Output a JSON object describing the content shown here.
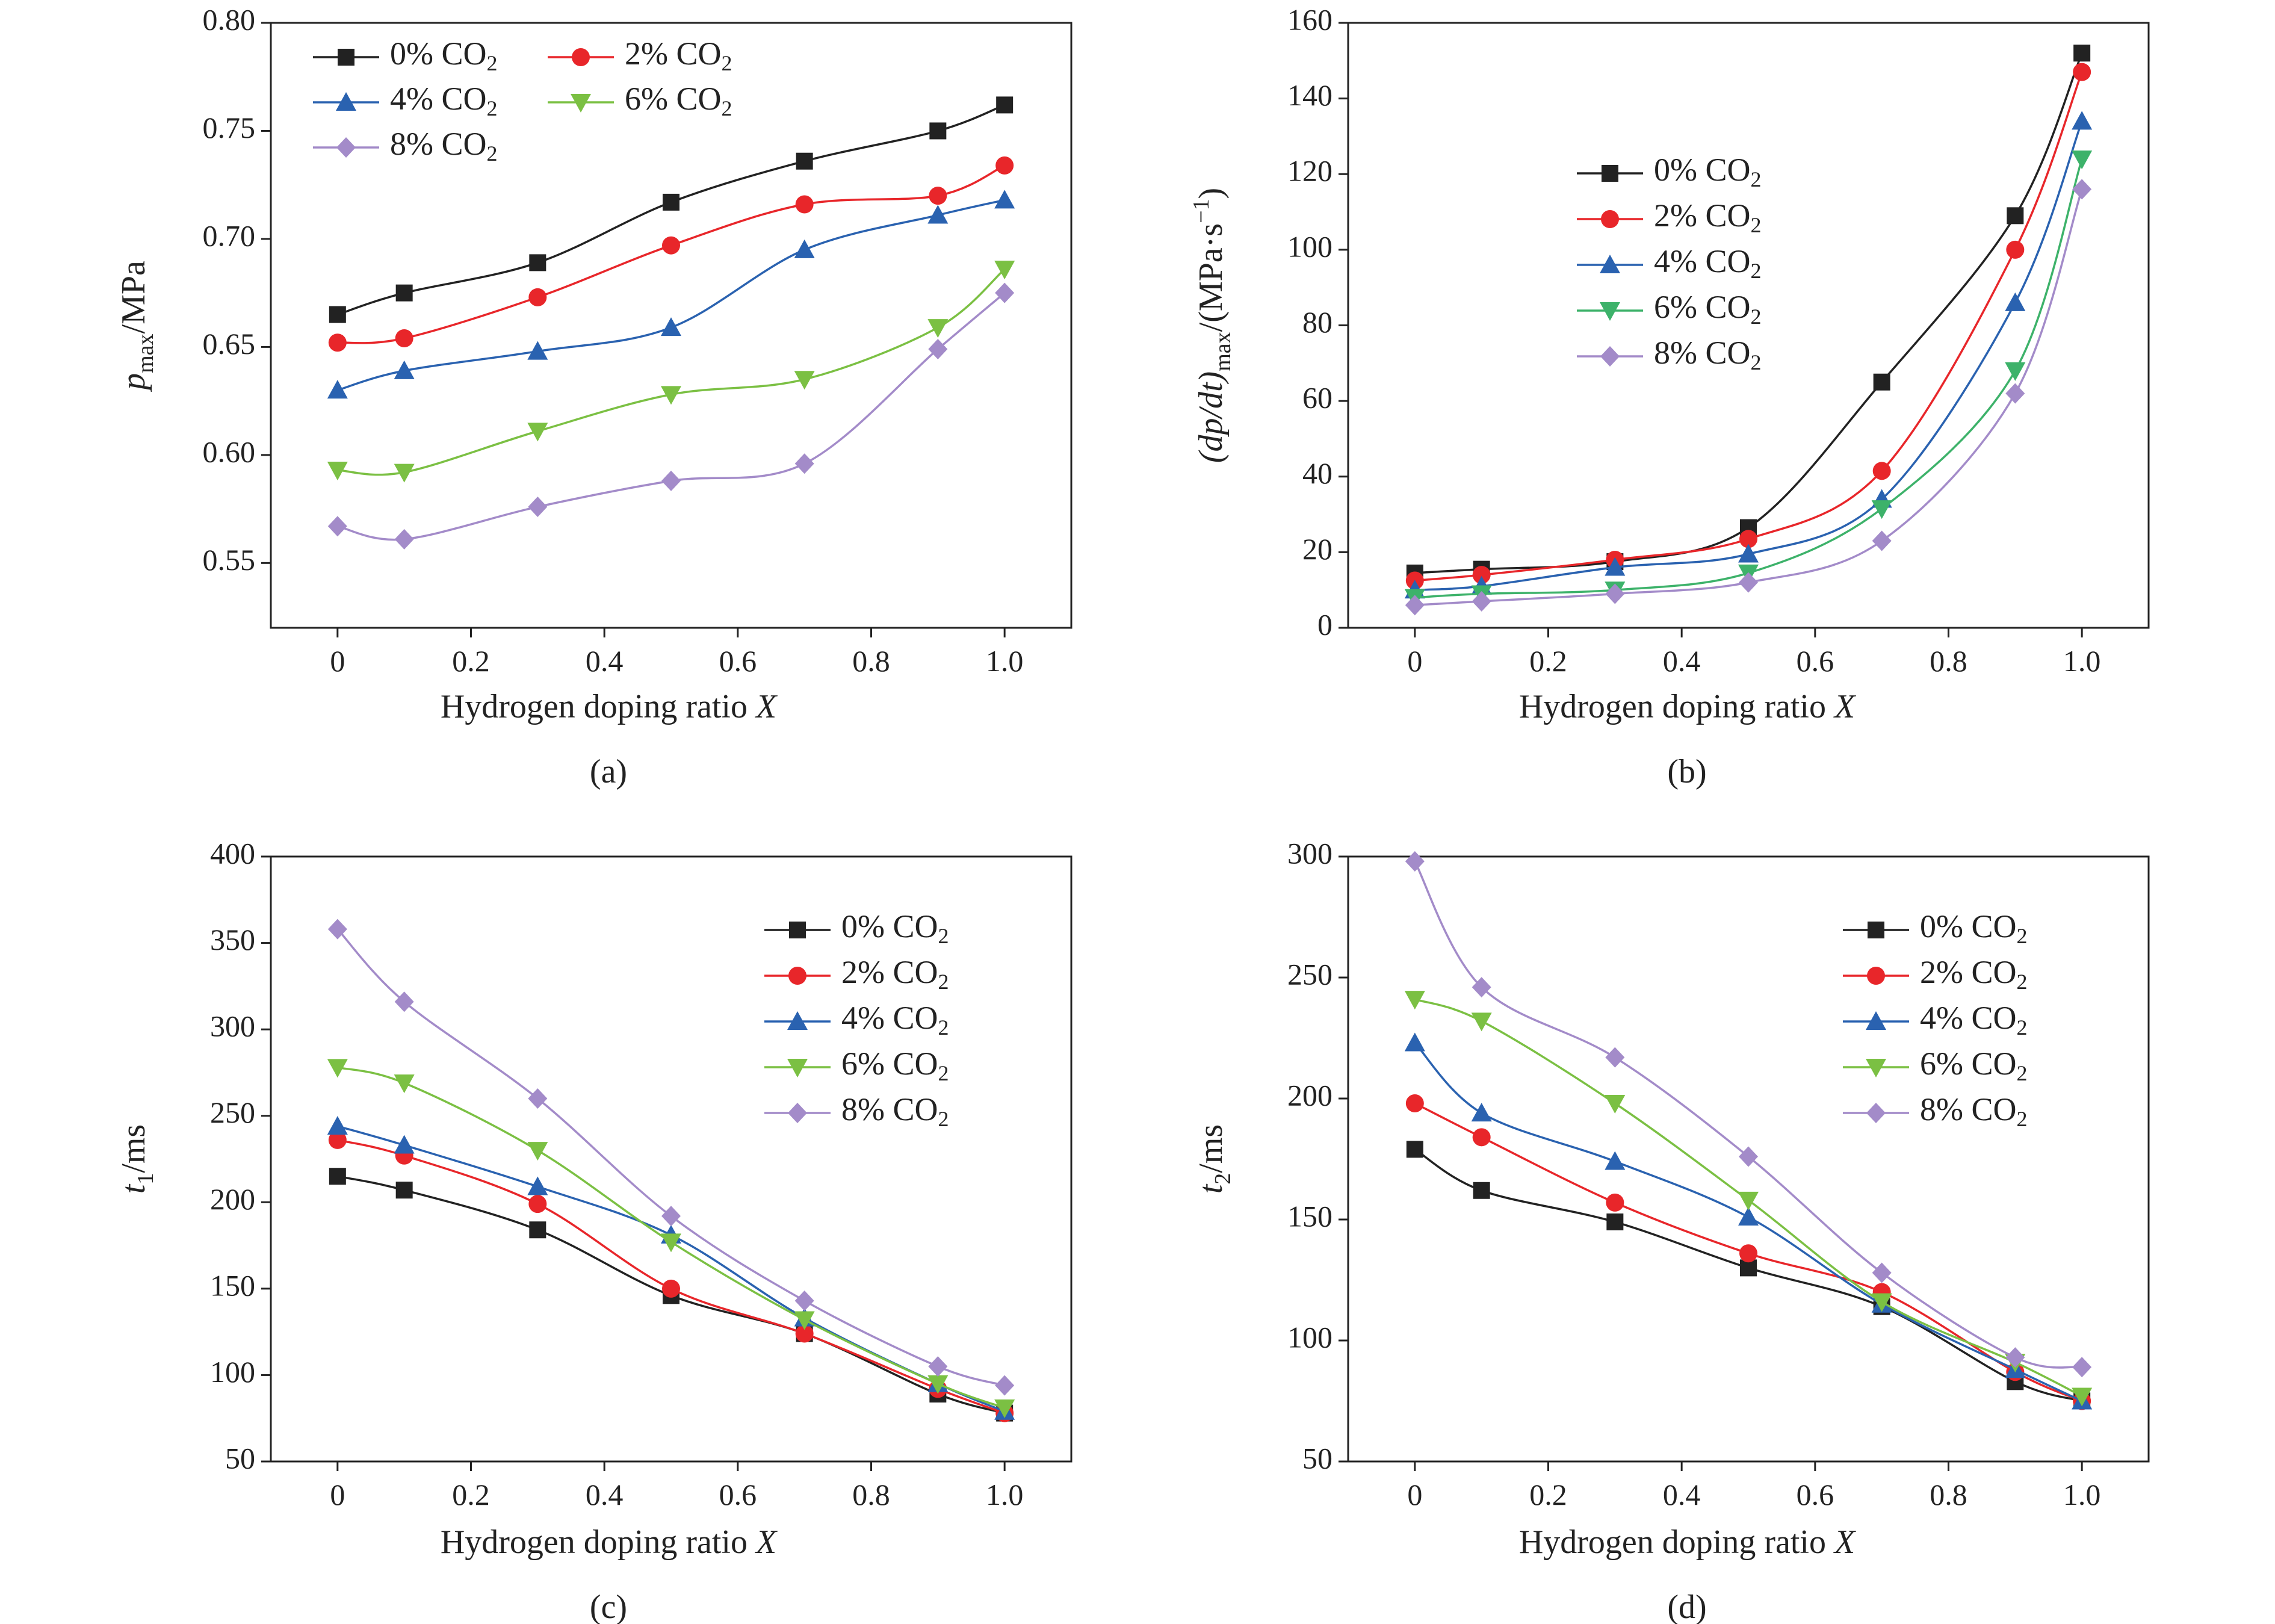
{
  "chart_data": [
    {
      "type": "line",
      "panel": "(a)",
      "xlabel": "Hydrogen doping ratio X",
      "ylabel_main": "p",
      "ylabel_sub": "max",
      "ylabel_rest": "/MPa",
      "x": [
        0,
        0.1,
        0.3,
        0.5,
        0.7,
        0.9,
        1.0
      ],
      "xlim": [
        -0.1,
        1.1
      ],
      "ylim": [
        0.52,
        0.8
      ],
      "xticks": [
        0,
        0.2,
        0.4,
        0.6,
        0.8,
        1.0
      ],
      "xtick_labels": [
        "0",
        "0.2",
        "0.4",
        "0.6",
        "0.8",
        "1.0"
      ],
      "yticks": [
        0.55,
        0.6,
        0.65,
        0.7,
        0.75,
        0.8
      ],
      "ytick_labels": [
        "0.55",
        "0.60",
        "0.65",
        "0.70",
        "0.75",
        "0.80"
      ],
      "legend_layout": "two-column",
      "series": [
        {
          "name": "0% CO",
          "sub": "2",
          "values": [
            0.665,
            0.675,
            0.689,
            0.717,
            0.736,
            0.75,
            0.762
          ],
          "color": "#222222",
          "marker": "square"
        },
        {
          "name": "2% CO",
          "sub": "2",
          "values": [
            0.652,
            0.654,
            0.673,
            0.697,
            0.716,
            0.72,
            0.734
          ],
          "color": "#e8262a",
          "marker": "circle"
        },
        {
          "name": "4% CO",
          "sub": "2",
          "values": [
            0.63,
            0.639,
            0.648,
            0.659,
            0.695,
            0.711,
            0.718
          ],
          "color": "#2a62b0",
          "marker": "triangle-up"
        },
        {
          "name": "6% CO",
          "sub": "2",
          "values": [
            0.593,
            0.592,
            0.611,
            0.628,
            0.635,
            0.659,
            0.686
          ],
          "color": "#7bc043",
          "marker": "triangle-down"
        },
        {
          "name": "8% CO",
          "sub": "2",
          "values": [
            0.567,
            0.561,
            0.576,
            0.588,
            0.596,
            0.649,
            0.675
          ],
          "color": "#a38bc9",
          "marker": "diamond"
        }
      ]
    },
    {
      "type": "line",
      "panel": "(b)",
      "xlabel": "Hydrogen doping ratio X",
      "ylabel_main": "(dp/dt)",
      "ylabel_sub": "max",
      "ylabel_rest": "/(MPa·s",
      "ylabel_sup": "−1",
      "ylabel_end": ")",
      "x": [
        0,
        0.1,
        0.3,
        0.5,
        0.7,
        0.9,
        1.0
      ],
      "xlim": [
        -0.1,
        1.1
      ],
      "ylim": [
        0,
        160
      ],
      "xticks": [
        0,
        0.2,
        0.4,
        0.6,
        0.8,
        1.0
      ],
      "xtick_labels": [
        "0",
        "0.2",
        "0.4",
        "0.6",
        "0.8",
        "1.0"
      ],
      "yticks": [
        0,
        20,
        40,
        60,
        80,
        100,
        120,
        140,
        160
      ],
      "ytick_labels": [
        "0",
        "20",
        "40",
        "60",
        "80",
        "100",
        "120",
        "140",
        "160"
      ],
      "legend_layout": "one-column",
      "series": [
        {
          "name": "0% CO",
          "sub": "2",
          "values": [
            14.5,
            15.5,
            17.5,
            26.5,
            65,
            109,
            152
          ],
          "color": "#222222",
          "marker": "square"
        },
        {
          "name": "2% CO",
          "sub": "2",
          "values": [
            12.5,
            14,
            18,
            23.5,
            41.5,
            100,
            147
          ],
          "color": "#e8262a",
          "marker": "circle"
        },
        {
          "name": "4% CO",
          "sub": "2",
          "values": [
            10,
            11,
            16,
            19.5,
            34,
            86,
            134
          ],
          "color": "#2a62b0",
          "marker": "triangle-up"
        },
        {
          "name": "6% CO",
          "sub": "2",
          "values": [
            8,
            9,
            10,
            14.5,
            31.5,
            68,
            124
          ],
          "color": "#3db26a",
          "marker": "triangle-down"
        },
        {
          "name": "8% CO",
          "sub": "2",
          "values": [
            6,
            7,
            9,
            12,
            23,
            62,
            116
          ],
          "color": "#a38bc9",
          "marker": "diamond"
        }
      ]
    },
    {
      "type": "line",
      "panel": "(c)",
      "xlabel": "Hydrogen doping ratio X",
      "ylabel_main": "t",
      "ylabel_sub": "1",
      "ylabel_rest": "/ms",
      "x": [
        0,
        0.1,
        0.3,
        0.5,
        0.7,
        0.9,
        1.0
      ],
      "xlim": [
        -0.1,
        1.1
      ],
      "ylim": [
        50,
        400
      ],
      "xticks": [
        0,
        0.2,
        0.4,
        0.6,
        0.8,
        1.0
      ],
      "xtick_labels": [
        "0",
        "0.2",
        "0.4",
        "0.6",
        "0.8",
        "1.0"
      ],
      "yticks": [
        50,
        100,
        150,
        200,
        250,
        300,
        350,
        400
      ],
      "ytick_labels": [
        "50",
        "100",
        "150",
        "200",
        "250",
        "300",
        "350",
        "400"
      ],
      "legend_layout": "one-column",
      "series": [
        {
          "name": "0% CO",
          "sub": "2",
          "values": [
            215,
            207,
            184,
            146,
            124,
            89,
            78
          ],
          "color": "#222222",
          "marker": "square"
        },
        {
          "name": "2% CO",
          "sub": "2",
          "values": [
            236,
            227,
            199,
            150,
            124,
            92,
            78
          ],
          "color": "#e8262a",
          "marker": "circle"
        },
        {
          "name": "4% CO",
          "sub": "2",
          "values": [
            244,
            233,
            209,
            181,
            133,
            95,
            79
          ],
          "color": "#2a62b0",
          "marker": "triangle-up"
        },
        {
          "name": "6% CO",
          "sub": "2",
          "values": [
            278,
            269,
            230,
            177,
            132,
            95,
            81
          ],
          "color": "#7bc043",
          "marker": "triangle-down"
        },
        {
          "name": "8% CO",
          "sub": "2",
          "values": [
            358,
            316,
            260,
            192,
            143,
            105,
            94
          ],
          "color": "#a38bc9",
          "marker": "diamond"
        }
      ]
    },
    {
      "type": "line",
      "panel": "(d)",
      "xlabel": "Hydrogen doping ratio X",
      "ylabel_main": "t",
      "ylabel_sub": "2",
      "ylabel_rest": "/ms",
      "x": [
        0,
        0.1,
        0.3,
        0.5,
        0.7,
        0.9,
        1.0
      ],
      "xlim": [
        -0.1,
        1.1
      ],
      "ylim": [
        50,
        300
      ],
      "xticks": [
        0,
        0.2,
        0.4,
        0.6,
        0.8,
        1.0
      ],
      "xtick_labels": [
        "0",
        "0.2",
        "0.4",
        "0.6",
        "0.8",
        "1.0"
      ],
      "yticks": [
        50,
        100,
        150,
        200,
        250,
        300
      ],
      "ytick_labels": [
        "50",
        "100",
        "150",
        "200",
        "250",
        "300"
      ],
      "legend_layout": "one-column",
      "series": [
        {
          "name": "0% CO",
          "sub": "2",
          "values": [
            179,
            162,
            149,
            130,
            114,
            83,
            75
          ],
          "color": "#222222",
          "marker": "square"
        },
        {
          "name": "2% CO",
          "sub": "2",
          "values": [
            198,
            184,
            157,
            136,
            120,
            87,
            75
          ],
          "color": "#e8262a",
          "marker": "circle"
        },
        {
          "name": "4% CO",
          "sub": "2",
          "values": [
            223,
            194,
            174,
            151,
            115,
            88,
            75
          ],
          "color": "#2a62b0",
          "marker": "triangle-up"
        },
        {
          "name": "6% CO",
          "sub": "2",
          "values": [
            241,
            232,
            198,
            158,
            116,
            91,
            77
          ],
          "color": "#7bc043",
          "marker": "triangle-down"
        },
        {
          "name": "8% CO",
          "sub": "2",
          "values": [
            298,
            246,
            217,
            176,
            128,
            93,
            89
          ],
          "color": "#a38bc9",
          "marker": "diamond"
        }
      ]
    }
  ]
}
